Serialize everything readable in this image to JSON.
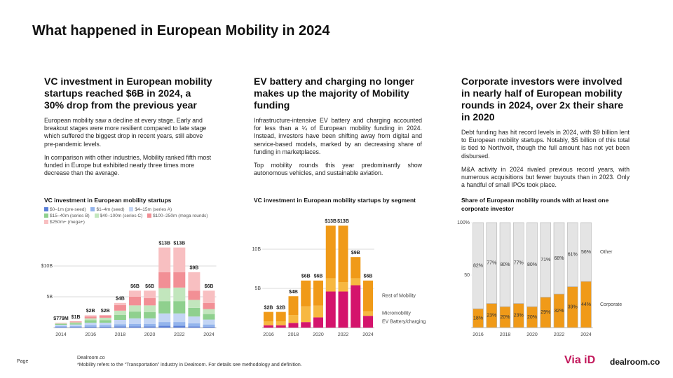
{
  "header": {
    "title": "What happened in European Mobility in 2024"
  },
  "columns": [
    {
      "heading": "VC investment in European mobility startups reached $6B in 2024, a 30% drop from the previous year",
      "paragraphs": [
        "European mobility saw a decline at every stage. Early and breakout stages were more resilient compared to late stage which suffered the biggest drop in recent years, still above pre-pandemic levels.",
        "In comparison with other industries, Mobility ranked fifth most funded in Europe but exhibited nearly three times more decrease than the average."
      ]
    },
    {
      "heading": "EV battery and charging no longer makes up the majority of Mobility funding",
      "paragraphs": [
        "Infrastructure-intensive EV battery and charging accounted for less than a ¼ of European mobility funding in 2024. Instead, investors have been shifting away from digital and service-based models, marked by an decreasing share of funding in marketplaces.",
        "Top mobility rounds this year predominantly show autonomous vehicles, and sustainable aviation."
      ]
    },
    {
      "heading": "Corporate investors  were involved in nearly half of European mobility rounds in 2024, over 2x their share in 2020",
      "paragraphs": [
        "Debt funding has hit record levels in 2024, with $9 billion lent to European mobility startups. Notably, $5 billion of this total is tied to Northvolt, though the full amount has not yet been disbursed.",
        "M&A activity in 2024 rivaled previous record years, with numerous acquisitions but fewer buyouts than in 2023. Only a handful of small IPOs took place."
      ]
    }
  ],
  "chart_data": [
    {
      "type": "bar",
      "stacked": true,
      "legend": "top",
      "grid": true,
      "title": "VC investment in European mobility startups",
      "categories": [
        "2014",
        null,
        "2016",
        null,
        "2018",
        null,
        "2020",
        null,
        "2022",
        null,
        "2024"
      ],
      "series": [
        {
          "name": "$0–1m (pre-seed)",
          "color": "#5a7fd8",
          "values": [
            0.1,
            0.1,
            0.15,
            0.15,
            0.2,
            0.2,
            0.2,
            0.3,
            0.3,
            0.2,
            0.15
          ]
        },
        {
          "name": "$1–4m (seed)",
          "color": "#93b4ec",
          "values": [
            0.15,
            0.15,
            0.25,
            0.25,
            0.35,
            0.4,
            0.4,
            0.6,
            0.6,
            0.5,
            0.35
          ]
        },
        {
          "name": "$4–15m (series A)",
          "color": "#c3d5f4",
          "values": [
            0.2,
            0.25,
            0.4,
            0.4,
            0.7,
            0.9,
            0.9,
            1.4,
            1.4,
            1.1,
            0.8
          ]
        },
        {
          "name": "$15–40m (series B)",
          "color": "#8fd08e",
          "values": [
            0.15,
            0.2,
            0.4,
            0.4,
            0.8,
            1.1,
            1.0,
            2.0,
            2.0,
            1.4,
            0.9
          ]
        },
        {
          "name": "$40–100m (series C)",
          "color": "#c2e6bd",
          "values": [
            0.1,
            0.15,
            0.3,
            0.4,
            0.7,
            1.0,
            1.1,
            2.1,
            2.2,
            1.3,
            0.8
          ]
        },
        {
          "name": "$100–250m (mega rounds)",
          "color": "#f28f95",
          "values": [
            0.079,
            0.15,
            0.3,
            0.4,
            0.9,
            1.4,
            1.2,
            2.6,
            2.5,
            1.5,
            1.0
          ]
        },
        {
          "name": "$250m+ (mega+)",
          "color": "#f8bfc1",
          "values": [
            0,
            0,
            0.2,
            0,
            0.35,
            1.0,
            1.2,
            4.0,
            4.0,
            3.0,
            2.0
          ]
        }
      ],
      "totals": {
        "values": [
          0.779,
          1,
          2,
          2,
          4,
          6,
          6,
          13,
          13,
          9,
          6
        ],
        "value_labels": [
          "$779M",
          "$1B",
          "$2B",
          "$2B",
          "$4B",
          "$6B",
          "$6B",
          "$13B",
          "$13B",
          "$9B",
          "$6B"
        ]
      },
      "ylim": [
        0,
        15
      ],
      "yticks": [
        {
          "value": 5,
          "label": "5B"
        },
        {
          "value": 10,
          "label": "$10B"
        }
      ]
    },
    {
      "type": "bar",
      "stacked": true,
      "legend": "right",
      "grid": true,
      "title": "VC investment in European mobility startups by segment",
      "categories": [
        "2016",
        null,
        "2018",
        null,
        "2020",
        null,
        "2022",
        null,
        "2024"
      ],
      "series": [
        {
          "name": "EV Battery/charging",
          "color": "#d4146c",
          "values": [
            0.3,
            0.3,
            0.6,
            0.7,
            1.3,
            4.6,
            4.6,
            5.4,
            1.5
          ]
        },
        {
          "name": "Micromobility",
          "color": "#f7b841",
          "values": [
            0.5,
            0.5,
            1.0,
            2.0,
            1.5,
            1.7,
            1.2,
            0.9,
            0.6
          ]
        },
        {
          "name": "Rest of Mobility",
          "color": "#f09a18",
          "values": [
            1.2,
            1.2,
            2.4,
            3.3,
            3.2,
            6.7,
            7.2,
            2.7,
            3.9
          ]
        }
      ],
      "totals": {
        "values": [
          2,
          2,
          4,
          6,
          6,
          13,
          13,
          9,
          6
        ],
        "value_labels": [
          "$2B",
          "$2B",
          "$4B",
          "$6B",
          "$6B",
          "$13B",
          "$13B",
          "$9B",
          "$6B"
        ]
      },
      "ylim": [
        0,
        14
      ],
      "yticks": [
        {
          "value": 5,
          "label": "5B"
        },
        {
          "value": 10,
          "label": "10B"
        }
      ]
    },
    {
      "type": "bar",
      "stacked": true,
      "legend": "right",
      "grid": false,
      "title": "Share of European mobility rounds with at least one corporate investor",
      "categories": [
        "2016",
        null,
        "2018",
        null,
        "2020",
        null,
        "2022",
        null,
        "2024"
      ],
      "series": [
        {
          "name": "Corporate",
          "color": "#f09a18",
          "values": [
            18,
            23,
            20,
            23,
            20,
            29,
            32,
            39,
            44
          ],
          "value_labels": [
            "18%",
            "23%",
            "20%",
            "23%",
            "20%",
            "29%",
            "32%",
            "39%",
            "44%"
          ]
        },
        {
          "name": "Other",
          "color": "#e4e4e4",
          "values": [
            82,
            77,
            80,
            77,
            80,
            71,
            68,
            61,
            56
          ],
          "value_labels": [
            "82%",
            "77%",
            "80%",
            "77%",
            "80%",
            "71%",
            "68%",
            "61%",
            "56%"
          ]
        }
      ],
      "ylim": [
        0,
        100
      ],
      "yticks": [
        50,
        {
          "value": 100,
          "label": "100%"
        }
      ]
    }
  ],
  "footer": {
    "page": "Page",
    "source": "Dealroom.co",
    "note": "*Mobility refers to the “Transportation” industry in Dealroom. For details see methodology and definition.",
    "logos": [
      "Via iD",
      "dealroom.co"
    ]
  }
}
